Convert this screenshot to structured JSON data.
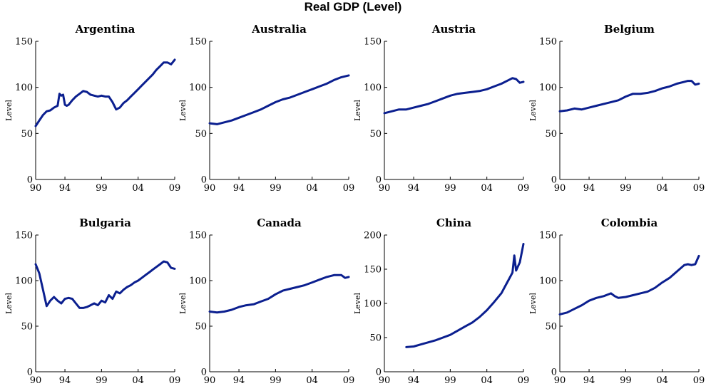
{
  "figure": {
    "title": "Real GDP (Level)"
  },
  "chart_data": [
    {
      "type": "line",
      "title": "Argentina",
      "ylabel": "Level",
      "xlim": [
        1990,
        2009
      ],
      "ylim": [
        0,
        150
      ],
      "yticks": [
        0,
        50,
        100,
        150
      ],
      "xticks": [
        1990,
        1994,
        1999,
        2004,
        2009
      ],
      "xtick_labels": [
        "90",
        "94",
        "99",
        "04",
        "09"
      ],
      "series": [
        {
          "color": "#0b1f8f",
          "x": [
            1990,
            1990.5,
            1991,
            1991.5,
            1992,
            1992.5,
            1993,
            1993.25,
            1993.5,
            1993.75,
            1994,
            1994.25,
            1994.5,
            1995,
            1995.5,
            1996,
            1996.5,
            1997,
            1997.5,
            1998,
            1998.5,
            1999,
            1999.5,
            2000,
            2000.5,
            2001,
            2001.5,
            2002,
            2002.5,
            2003,
            2003.5,
            2004,
            2004.5,
            2005,
            2005.5,
            2006,
            2006.5,
            2007,
            2007.5,
            2008,
            2008.5,
            2009
          ],
          "y": [
            58,
            64,
            70,
            74,
            75,
            78,
            80,
            93,
            91,
            92,
            81,
            80,
            81,
            86,
            90,
            93,
            96,
            95,
            92,
            91,
            90,
            91,
            90,
            90,
            84,
            76,
            78,
            83,
            86,
            90,
            94,
            98,
            102,
            106,
            110,
            114,
            119,
            123,
            127,
            127,
            125,
            130
          ]
        }
      ]
    },
    {
      "type": "line",
      "title": "Australia",
      "ylabel": "Level",
      "xlim": [
        1990,
        2009
      ],
      "ylim": [
        0,
        150
      ],
      "yticks": [
        0,
        50,
        100,
        150
      ],
      "xticks": [
        1990,
        1994,
        1999,
        2004,
        2009
      ],
      "xtick_labels": [
        "90",
        "94",
        "99",
        "04",
        "09"
      ],
      "series": [
        {
          "color": "#0b1f8f",
          "x": [
            1990,
            1991,
            1992,
            1993,
            1994,
            1995,
            1996,
            1997,
            1998,
            1999,
            2000,
            2001,
            2002,
            2003,
            2004,
            2005,
            2006,
            2007,
            2008,
            2009
          ],
          "y": [
            61,
            60,
            62,
            64,
            67,
            70,
            73,
            76,
            80,
            84,
            87,
            89,
            92,
            95,
            98,
            101,
            104,
            108,
            111,
            113
          ]
        }
      ]
    },
    {
      "type": "line",
      "title": "Austria",
      "ylabel": "Level",
      "xlim": [
        1990,
        2009
      ],
      "ylim": [
        0,
        150
      ],
      "yticks": [
        0,
        50,
        100,
        150
      ],
      "xticks": [
        1990,
        1994,
        1999,
        2004,
        2009
      ],
      "xtick_labels": [
        "90",
        "94",
        "99",
        "04",
        "09"
      ],
      "series": [
        {
          "color": "#0b1f8f",
          "x": [
            1990,
            1991,
            1992,
            1993,
            1994,
            1995,
            1996,
            1997,
            1998,
            1999,
            2000,
            2001,
            2002,
            2003,
            2004,
            2005,
            2006,
            2007,
            2007.5,
            2008,
            2008.5,
            2009
          ],
          "y": [
            72,
            74,
            76,
            76,
            78,
            80,
            82,
            85,
            88,
            91,
            93,
            94,
            95,
            96,
            98,
            101,
            104,
            108,
            110,
            109,
            105,
            106
          ]
        }
      ]
    },
    {
      "type": "line",
      "title": "Belgium",
      "ylabel": "Level",
      "xlim": [
        1990,
        2009
      ],
      "ylim": [
        0,
        150
      ],
      "yticks": [
        0,
        50,
        100,
        150
      ],
      "xticks": [
        1990,
        1994,
        1999,
        2004,
        2009
      ],
      "xtick_labels": [
        "90",
        "94",
        "99",
        "04",
        "09"
      ],
      "series": [
        {
          "color": "#0b1f8f",
          "x": [
            1990,
            1991,
            1992,
            1993,
            1994,
            1995,
            1996,
            1997,
            1998,
            1999,
            2000,
            2001,
            2002,
            2003,
            2004,
            2005,
            2006,
            2007,
            2007.5,
            2008,
            2008.5,
            2009
          ],
          "y": [
            74,
            75,
            77,
            76,
            78,
            80,
            82,
            84,
            86,
            90,
            93,
            93,
            94,
            96,
            99,
            101,
            104,
            106,
            107,
            107,
            103,
            104
          ]
        }
      ]
    },
    {
      "type": "line",
      "title": "Bulgaria",
      "ylabel": "Level",
      "xlim": [
        1990,
        2009
      ],
      "ylim": [
        0,
        150
      ],
      "yticks": [
        0,
        50,
        100,
        150
      ],
      "xticks": [
        1990,
        1994,
        1999,
        2004,
        2009
      ],
      "xtick_labels": [
        "90",
        "94",
        "99",
        "04",
        "09"
      ],
      "series": [
        {
          "color": "#0b1f8f",
          "x": [
            1990,
            1990.5,
            1991,
            1991.5,
            1992,
            1992.5,
            1993,
            1993.5,
            1994,
            1994.5,
            1995,
            1995.5,
            1996,
            1996.5,
            1997,
            1997.5,
            1998,
            1998.5,
            1999,
            1999.5,
            2000,
            2000.5,
            2001,
            2001.5,
            2002,
            2002.5,
            2003,
            2003.5,
            2004,
            2004.5,
            2005,
            2005.5,
            2006,
            2006.5,
            2007,
            2007.5,
            2008,
            2008.5,
            2009
          ],
          "y": [
            118,
            108,
            90,
            72,
            78,
            82,
            78,
            75,
            80,
            81,
            80,
            75,
            70,
            70,
            71,
            73,
            75,
            73,
            78,
            76,
            84,
            80,
            88,
            86,
            90,
            93,
            95,
            98,
            100,
            103,
            106,
            109,
            112,
            115,
            118,
            121,
            120,
            114,
            113
          ]
        }
      ]
    },
    {
      "type": "line",
      "title": "Canada",
      "ylabel": "Level",
      "xlim": [
        1990,
        2009
      ],
      "ylim": [
        0,
        150
      ],
      "yticks": [
        0,
        50,
        100,
        150
      ],
      "xticks": [
        1990,
        1994,
        1999,
        2004,
        2009
      ],
      "xtick_labels": [
        "90",
        "94",
        "99",
        "04",
        "09"
      ],
      "series": [
        {
          "color": "#0b1f8f",
          "x": [
            1990,
            1991,
            1992,
            1993,
            1994,
            1995,
            1996,
            1997,
            1998,
            1999,
            2000,
            2001,
            2002,
            2003,
            2004,
            2005,
            2006,
            2007,
            2008,
            2008.5,
            2009
          ],
          "y": [
            66,
            65,
            66,
            68,
            71,
            73,
            74,
            77,
            80,
            85,
            89,
            91,
            93,
            95,
            98,
            101,
            104,
            106,
            106,
            103,
            104
          ]
        }
      ]
    },
    {
      "type": "line",
      "title": "China",
      "ylabel": "Level",
      "xlim": [
        1990,
        2009
      ],
      "ylim": [
        0,
        200
      ],
      "yticks": [
        0,
        50,
        100,
        150,
        200
      ],
      "xticks": [
        1990,
        1994,
        1999,
        2004,
        2009
      ],
      "xtick_labels": [
        "90",
        "94",
        "99",
        "04",
        "09"
      ],
      "series": [
        {
          "color": "#0b1f8f",
          "x": [
            1993,
            1994,
            1995,
            1996,
            1997,
            1998,
            1999,
            2000,
            2001,
            2002,
            2003,
            2004,
            2005,
            2006,
            2006.5,
            2007,
            2007.5,
            2007.75,
            2008,
            2008.5,
            2009
          ],
          "y": [
            36,
            37,
            40,
            43,
            46,
            50,
            54,
            60,
            66,
            72,
            80,
            90,
            102,
            115,
            125,
            135,
            145,
            170,
            148,
            160,
            187
          ]
        }
      ]
    },
    {
      "type": "line",
      "title": "Colombia",
      "ylabel": "Level",
      "xlim": [
        1990,
        2009
      ],
      "ylim": [
        0,
        150
      ],
      "yticks": [
        0,
        50,
        100,
        150
      ],
      "xticks": [
        1990,
        1994,
        1999,
        2004,
        2009
      ],
      "xtick_labels": [
        "90",
        "94",
        "99",
        "04",
        "09"
      ],
      "series": [
        {
          "color": "#0b1f8f",
          "x": [
            1990,
            1991,
            1992,
            1993,
            1994,
            1995,
            1996,
            1997,
            1997.5,
            1998,
            1999,
            2000,
            2001,
            2002,
            2003,
            2004,
            2005,
            2006,
            2007,
            2007.5,
            2008,
            2008.5,
            2009
          ],
          "y": [
            63,
            65,
            69,
            73,
            78,
            81,
            83,
            86,
            83,
            81,
            82,
            84,
            86,
            88,
            92,
            98,
            103,
            110,
            117,
            118,
            117,
            118,
            127
          ]
        }
      ]
    }
  ]
}
